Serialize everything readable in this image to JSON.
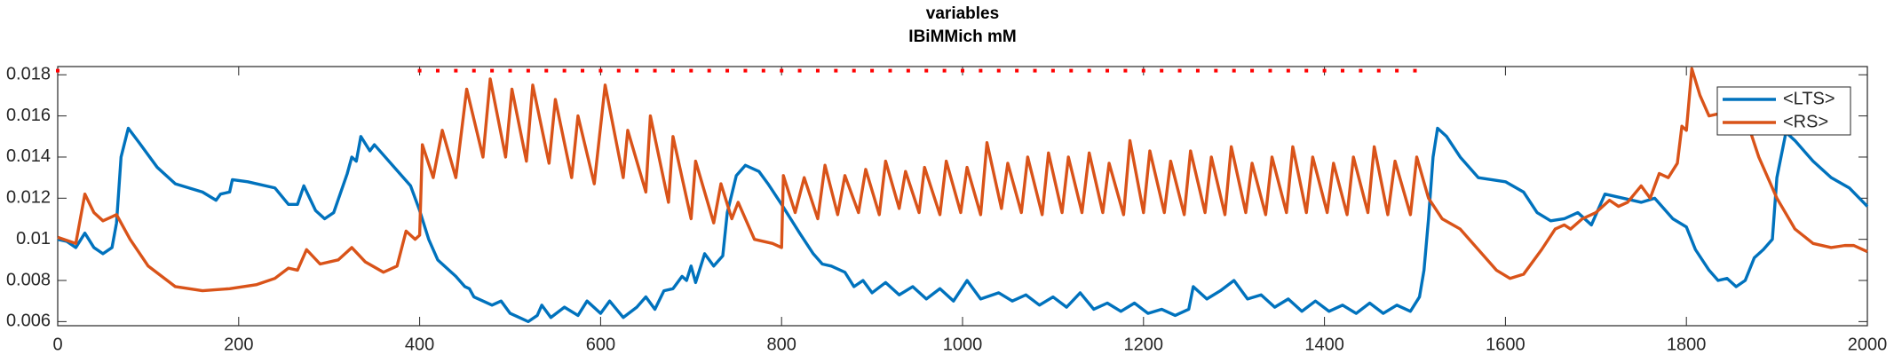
{
  "chart_data": {
    "type": "line",
    "title": "variables",
    "subtitle": "IBiMMich mM",
    "xlim": [
      0,
      2000
    ],
    "xticks": [
      0,
      200,
      400,
      600,
      800,
      1000,
      1200,
      1400,
      1600,
      1800,
      2000
    ],
    "ylim": [
      0.0058,
      0.0184
    ],
    "yticks": [
      0.006,
      0.008,
      0.01,
      0.012,
      0.014,
      0.016,
      0.018
    ],
    "grid": false,
    "legend": "top-right",
    "series": [
      {
        "name": "<LTS>",
        "color": "#0072bd",
        "x": [
          0,
          10,
          20,
          30,
          40,
          50,
          60,
          65,
          70,
          78,
          90,
          110,
          130,
          160,
          175,
          180,
          190,
          193,
          210,
          240,
          255,
          265,
          272,
          285,
          295,
          305,
          320,
          325,
          330,
          335,
          345,
          350,
          370,
          390,
          400,
          410,
          420,
          440,
          450,
          455,
          460,
          470,
          480,
          490,
          500,
          510,
          520,
          530,
          535,
          545,
          560,
          575,
          585,
          600,
          610,
          625,
          640,
          650,
          660,
          670,
          680,
          690,
          695,
          700,
          705,
          715,
          725,
          735,
          740,
          750,
          760,
          775,
          785,
          800,
          820,
          835,
          845,
          855,
          870,
          880,
          890,
          900,
          915,
          930,
          945,
          960,
          975,
          990,
          1005,
          1020,
          1040,
          1055,
          1070,
          1085,
          1100,
          1115,
          1130,
          1145,
          1160,
          1175,
          1190,
          1205,
          1220,
          1235,
          1250,
          1255,
          1270,
          1285,
          1300,
          1315,
          1330,
          1345,
          1360,
          1375,
          1390,
          1405,
          1420,
          1435,
          1450,
          1465,
          1480,
          1495,
          1505,
          1510,
          1515,
          1520,
          1525,
          1535,
          1550,
          1570,
          1600,
          1620,
          1635,
          1650,
          1665,
          1680,
          1695,
          1710,
          1730,
          1750,
          1765,
          1785,
          1800,
          1810,
          1825,
          1835,
          1845,
          1855,
          1865,
          1875,
          1885,
          1895,
          1900,
          1910,
          1920,
          1940,
          1960,
          1980,
          2000
        ],
        "values": [
          0.01,
          0.0099,
          0.0096,
          0.0103,
          0.0096,
          0.0093,
          0.0096,
          0.0108,
          0.014,
          0.0154,
          0.0147,
          0.0135,
          0.0127,
          0.0123,
          0.0119,
          0.0122,
          0.0123,
          0.0129,
          0.0128,
          0.0125,
          0.0117,
          0.0117,
          0.0126,
          0.0114,
          0.011,
          0.0113,
          0.0132,
          0.014,
          0.0138,
          0.015,
          0.0143,
          0.0146,
          0.0136,
          0.0126,
          0.0114,
          0.01,
          0.009,
          0.0082,
          0.0077,
          0.0076,
          0.0072,
          0.007,
          0.0068,
          0.007,
          0.0064,
          0.0062,
          0.006,
          0.0063,
          0.0068,
          0.0062,
          0.0067,
          0.0063,
          0.007,
          0.0064,
          0.007,
          0.0062,
          0.0067,
          0.0072,
          0.0066,
          0.0075,
          0.0076,
          0.0082,
          0.008,
          0.0087,
          0.0079,
          0.0093,
          0.0087,
          0.0092,
          0.0113,
          0.0131,
          0.0136,
          0.0133,
          0.0127,
          0.0117,
          0.0103,
          0.0093,
          0.0088,
          0.0087,
          0.0084,
          0.0077,
          0.008,
          0.0074,
          0.0079,
          0.0073,
          0.0077,
          0.0071,
          0.0076,
          0.007,
          0.008,
          0.0071,
          0.0074,
          0.007,
          0.0073,
          0.0068,
          0.0072,
          0.0067,
          0.0074,
          0.0066,
          0.0069,
          0.0065,
          0.0069,
          0.0064,
          0.0066,
          0.0063,
          0.0066,
          0.0077,
          0.0071,
          0.0075,
          0.008,
          0.0071,
          0.0073,
          0.0067,
          0.0071,
          0.0065,
          0.007,
          0.0065,
          0.0068,
          0.0064,
          0.0069,
          0.0064,
          0.0068,
          0.0065,
          0.0072,
          0.0085,
          0.011,
          0.014,
          0.0154,
          0.015,
          0.014,
          0.013,
          0.0128,
          0.0123,
          0.0113,
          0.0109,
          0.011,
          0.0113,
          0.0107,
          0.0122,
          0.012,
          0.0118,
          0.012,
          0.011,
          0.0106,
          0.0095,
          0.0085,
          0.008,
          0.0081,
          0.0077,
          0.008,
          0.0091,
          0.0095,
          0.01,
          0.013,
          0.0152,
          0.0148,
          0.0138,
          0.013,
          0.0125,
          0.0116
        ]
      },
      {
        "name": "<RS>",
        "color": "#d95319",
        "x": [
          0,
          20,
          30,
          40,
          50,
          65,
          80,
          100,
          130,
          160,
          190,
          220,
          240,
          255,
          265,
          275,
          290,
          310,
          325,
          340,
          360,
          375,
          385,
          395,
          400,
          403,
          415,
          425,
          440,
          452,
          470,
          478,
          495,
          502,
          518,
          525,
          543,
          550,
          568,
          575,
          593,
          605,
          625,
          630,
          650,
          655,
          675,
          680,
          700,
          705,
          725,
          733,
          745,
          752,
          770,
          790,
          800,
          802,
          815,
          825,
          840,
          848,
          862,
          870,
          885,
          893,
          908,
          915,
          930,
          937,
          952,
          958,
          975,
          982,
          998,
          1005,
          1020,
          1027,
          1043,
          1050,
          1065,
          1072,
          1088,
          1095,
          1110,
          1117,
          1132,
          1140,
          1155,
          1162,
          1178,
          1185,
          1200,
          1207,
          1223,
          1230,
          1245,
          1252,
          1268,
          1275,
          1290,
          1297,
          1313,
          1320,
          1335,
          1342,
          1358,
          1365,
          1380,
          1387,
          1403,
          1410,
          1425,
          1432,
          1448,
          1455,
          1470,
          1478,
          1495,
          1502,
          1515,
          1530,
          1550,
          1570,
          1590,
          1605,
          1620,
          1640,
          1655,
          1665,
          1672,
          1685,
          1700,
          1715,
          1725,
          1735,
          1750,
          1760,
          1770,
          1780,
          1790,
          1795,
          1800,
          1806,
          1815,
          1825,
          1835,
          1845,
          1855,
          1865,
          1880,
          1900,
          1920,
          1940,
          1960,
          1975,
          1985,
          2000
        ],
        "values": [
          0.0101,
          0.0098,
          0.0122,
          0.0113,
          0.0109,
          0.0112,
          0.01,
          0.0087,
          0.0077,
          0.0075,
          0.0076,
          0.0078,
          0.0081,
          0.0086,
          0.0085,
          0.0095,
          0.0088,
          0.009,
          0.0096,
          0.0089,
          0.0084,
          0.0087,
          0.0104,
          0.01,
          0.0102,
          0.0146,
          0.013,
          0.0153,
          0.013,
          0.0173,
          0.014,
          0.0178,
          0.014,
          0.0173,
          0.0138,
          0.0175,
          0.0137,
          0.0168,
          0.013,
          0.016,
          0.0127,
          0.0175,
          0.013,
          0.0153,
          0.0123,
          0.016,
          0.0118,
          0.015,
          0.011,
          0.0138,
          0.0108,
          0.0127,
          0.011,
          0.0118,
          0.01,
          0.0098,
          0.0096,
          0.0131,
          0.0113,
          0.013,
          0.011,
          0.0136,
          0.0112,
          0.0131,
          0.0113,
          0.0134,
          0.0112,
          0.0138,
          0.0115,
          0.0133,
          0.0113,
          0.0135,
          0.0112,
          0.0138,
          0.0113,
          0.0135,
          0.0112,
          0.0147,
          0.0115,
          0.0137,
          0.0113,
          0.014,
          0.0112,
          0.0142,
          0.0113,
          0.014,
          0.0113,
          0.0142,
          0.0113,
          0.0137,
          0.0112,
          0.0148,
          0.0113,
          0.0143,
          0.0113,
          0.0138,
          0.0112,
          0.0143,
          0.0113,
          0.014,
          0.0112,
          0.0145,
          0.0113,
          0.0137,
          0.0112,
          0.014,
          0.0113,
          0.0145,
          0.0113,
          0.014,
          0.0113,
          0.0137,
          0.0112,
          0.014,
          0.0113,
          0.0145,
          0.0112,
          0.0138,
          0.0112,
          0.014,
          0.012,
          0.011,
          0.0105,
          0.0095,
          0.0085,
          0.0081,
          0.0083,
          0.0095,
          0.0105,
          0.0107,
          0.0105,
          0.011,
          0.0113,
          0.0119,
          0.0116,
          0.0118,
          0.0126,
          0.012,
          0.0132,
          0.013,
          0.0137,
          0.0155,
          0.0153,
          0.0183,
          0.017,
          0.016,
          0.0161,
          0.0168,
          0.017,
          0.016,
          0.014,
          0.012,
          0.0105,
          0.0098,
          0.0096,
          0.0097,
          0.0097,
          0.0094
        ]
      }
    ],
    "markers": {
      "color": "#ff0000",
      "x": [
        0,
        400,
        420,
        440,
        460,
        480,
        500,
        520,
        540,
        560,
        580,
        600,
        620,
        640,
        660,
        680,
        700,
        720,
        740,
        760,
        780,
        800,
        820,
        840,
        860,
        880,
        900,
        920,
        940,
        960,
        980,
        1000,
        1020,
        1040,
        1060,
        1080,
        1100,
        1120,
        1140,
        1160,
        1180,
        1200,
        1220,
        1240,
        1260,
        1280,
        1300,
        1320,
        1340,
        1360,
        1380,
        1400,
        1420,
        1440,
        1460,
        1480,
        1500
      ],
      "values": [
        0.0182,
        0.0182,
        0.0182,
        0.0182,
        0.0182,
        0.0182,
        0.0182,
        0.0182,
        0.0182,
        0.0182,
        0.0182,
        0.0182,
        0.0182,
        0.0182,
        0.0182,
        0.0182,
        0.0182,
        0.0182,
        0.0182,
        0.0182,
        0.0182,
        0.0182,
        0.0182,
        0.0182,
        0.0182,
        0.0182,
        0.0182,
        0.0182,
        0.0182,
        0.0182,
        0.0182,
        0.0182,
        0.0182,
        0.0182,
        0.0182,
        0.0182,
        0.0182,
        0.0182,
        0.0182,
        0.0182,
        0.0182,
        0.0182,
        0.0182,
        0.0182,
        0.0182,
        0.0182,
        0.0182,
        0.0182,
        0.0182,
        0.0182,
        0.0182,
        0.0182,
        0.0182,
        0.0182,
        0.0182,
        0.0182,
        0.0182
      ]
    }
  }
}
